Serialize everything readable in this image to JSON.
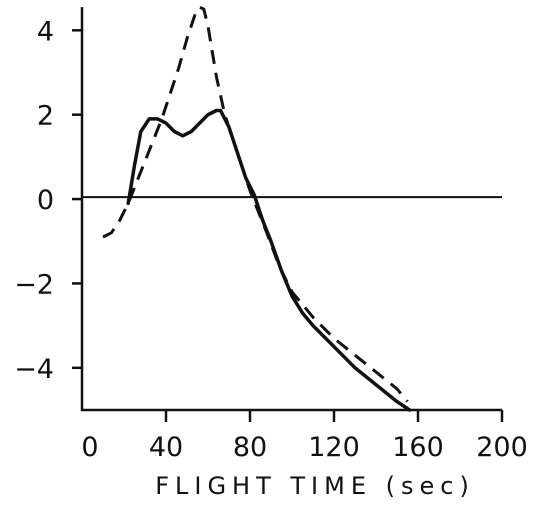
{
  "chart_data": {
    "type": "line",
    "title": "",
    "xlabel": "FLIGHT TIME (sec)",
    "ylabel": "",
    "xlim": [
      0,
      200
    ],
    "ylim": [
      -5,
      4.6
    ],
    "x_ticks": [
      0,
      40,
      80,
      120,
      160,
      200
    ],
    "x_tick_labels": [
      "0",
      "40",
      "80",
      "120",
      "160",
      "200"
    ],
    "y_ticks": [
      4,
      2,
      0,
      -2,
      -4
    ],
    "y_tick_labels": [
      "4",
      "2",
      "0",
      "−2",
      "−4"
    ],
    "zero_line": true,
    "grid": false,
    "series": [
      {
        "style": "solid",
        "x": [
          22,
          25,
          28,
          32,
          36,
          40,
          44,
          48,
          52,
          56,
          60,
          64,
          66,
          70,
          74,
          78,
          82,
          86,
          90,
          95,
          100,
          105,
          110,
          120,
          130,
          140,
          150,
          156
        ],
        "y": [
          -0.1,
          0.8,
          1.6,
          1.9,
          1.9,
          1.8,
          1.6,
          1.5,
          1.6,
          1.8,
          2.0,
          2.1,
          2.1,
          1.7,
          1.1,
          0.5,
          0.1,
          -0.5,
          -1.0,
          -1.7,
          -2.3,
          -2.7,
          -3.0,
          -3.5,
          -4.0,
          -4.4,
          -4.8,
          -5.0
        ]
      },
      {
        "style": "dashed",
        "x": [
          10,
          14,
          18,
          22,
          26,
          30,
          34,
          38,
          42,
          46,
          50,
          54,
          56,
          58,
          60,
          62,
          64,
          68,
          72,
          76,
          80,
          84,
          88,
          94,
          100,
          110,
          120,
          130,
          140,
          150,
          155
        ],
        "y": [
          -0.9,
          -0.8,
          -0.5,
          -0.1,
          0.4,
          0.9,
          1.4,
          1.9,
          2.5,
          3.1,
          3.8,
          4.4,
          4.55,
          4.5,
          4.1,
          3.5,
          2.9,
          2.0,
          1.4,
          0.8,
          0.2,
          -0.3,
          -0.8,
          -1.6,
          -2.2,
          -2.8,
          -3.3,
          -3.7,
          -4.1,
          -4.5,
          -4.8
        ]
      }
    ]
  }
}
